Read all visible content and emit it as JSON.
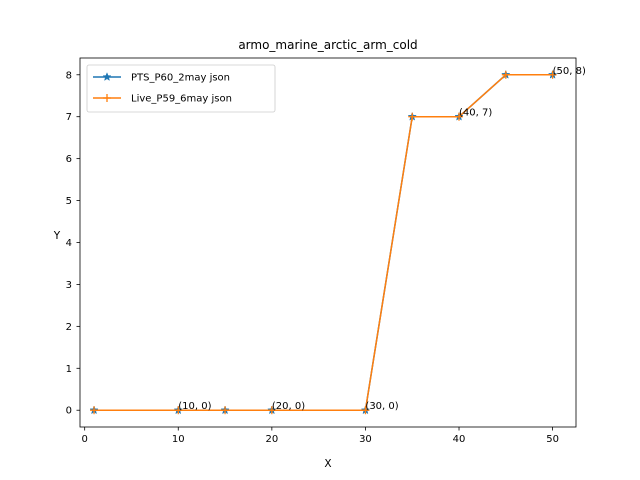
{
  "chart_data": {
    "type": "line",
    "title": "armo_marine_arctic_arm_cold",
    "xlabel": "X",
    "ylabel": "Y",
    "xlim": [
      -0.5,
      52.5
    ],
    "ylim": [
      -0.4,
      8.4
    ],
    "xticks": [
      0,
      10,
      20,
      30,
      40,
      50
    ],
    "yticks": [
      0,
      1,
      2,
      3,
      4,
      5,
      6,
      7,
      8
    ],
    "grid": false,
    "legend_position": "upper-left",
    "series": [
      {
        "name": "PTS_P60_2may json",
        "color": "#1f77b4",
        "marker": "star",
        "x": [
          1,
          10,
          15,
          20,
          30,
          35,
          40,
          45,
          50
        ],
        "y": [
          0,
          0,
          0,
          0,
          0,
          7,
          7,
          8,
          8
        ]
      },
      {
        "name": "Live_P59_6may json",
        "color": "#ff7f0e",
        "marker": "plus",
        "x": [
          1,
          10,
          15,
          20,
          30,
          35,
          40,
          45,
          50
        ],
        "y": [
          0,
          0,
          0,
          0,
          0,
          7,
          7,
          8,
          8
        ]
      }
    ],
    "annotations": [
      {
        "x": 10,
        "y": 0,
        "text": "(10, 0)"
      },
      {
        "x": 20,
        "y": 0,
        "text": "(20, 0)"
      },
      {
        "x": 30,
        "y": 0,
        "text": "(30, 0)"
      },
      {
        "x": 40,
        "y": 7,
        "text": "(40, 7)"
      },
      {
        "x": 50,
        "y": 8,
        "text": "(50, 8)"
      }
    ]
  }
}
